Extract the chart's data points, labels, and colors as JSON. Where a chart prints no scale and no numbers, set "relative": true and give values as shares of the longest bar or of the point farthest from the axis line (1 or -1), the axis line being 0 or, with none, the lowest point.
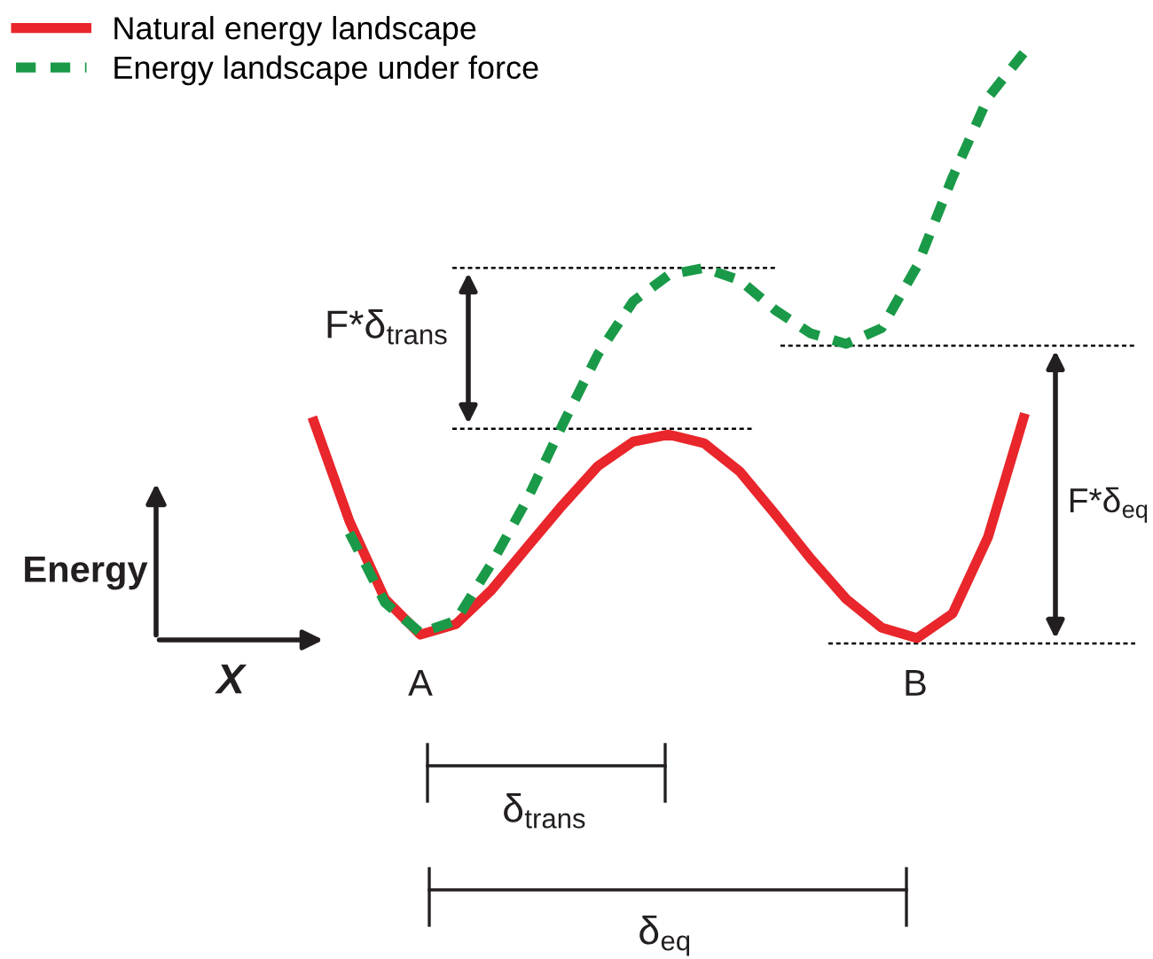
{
  "chart_data": {
    "type": "line",
    "relative": true,
    "legend": "top left",
    "categories": [
      null,
      null,
      null,
      null,
      null,
      null,
      null,
      null,
      null,
      null,
      null,
      null,
      null,
      null,
      null,
      null,
      null,
      null,
      null,
      null,
      null
    ],
    "series": [
      {
        "name": "Natural energy landscape",
        "color": "#e8262b",
        "line_style": "solid",
        "values": [
          0.37,
          0.2,
          0.067,
          0.006,
          0.024,
          0.082,
          0.155,
          0.227,
          0.294,
          0.336,
          0.348,
          0.333,
          0.285,
          0.212,
          0.136,
          0.067,
          0.018,
          0,
          0.042,
          0.173,
          0.376
        ]
      },
      {
        "name": "Energy landscape under force",
        "color": "#1a9a48",
        "line_style": "dashed",
        "values": [
          null,
          0.18,
          0.061,
          0.009,
          0.03,
          0.127,
          0.236,
          0.364,
          0.485,
          0.576,
          0.621,
          0.633,
          0.612,
          0.561,
          0.521,
          0.503,
          0.53,
          0.636,
          0.788,
          0.924,
          1
        ]
      }
    ],
    "ref_lines": [
      {
        "axis": "y",
        "value": 0.633,
        "line_style": "dashed",
        "color": "#000000"
      },
      {
        "axis": "y",
        "value": 0.358,
        "line_style": "dashed",
        "color": "#000000"
      },
      {
        "axis": "y",
        "value": 0.5,
        "line_style": "dashed",
        "color": "#000000"
      },
      {
        "axis": "y",
        "value": -0.009,
        "line_style": "dashed",
        "color": "#000000"
      }
    ],
    "annotations": [
      "Energy",
      "X",
      "A",
      "B",
      "F*δ$_{trans}$",
      "F*δ$_{eq}$",
      "δ$_{trans}$",
      "δ$_{eq}$"
    ]
  }
}
